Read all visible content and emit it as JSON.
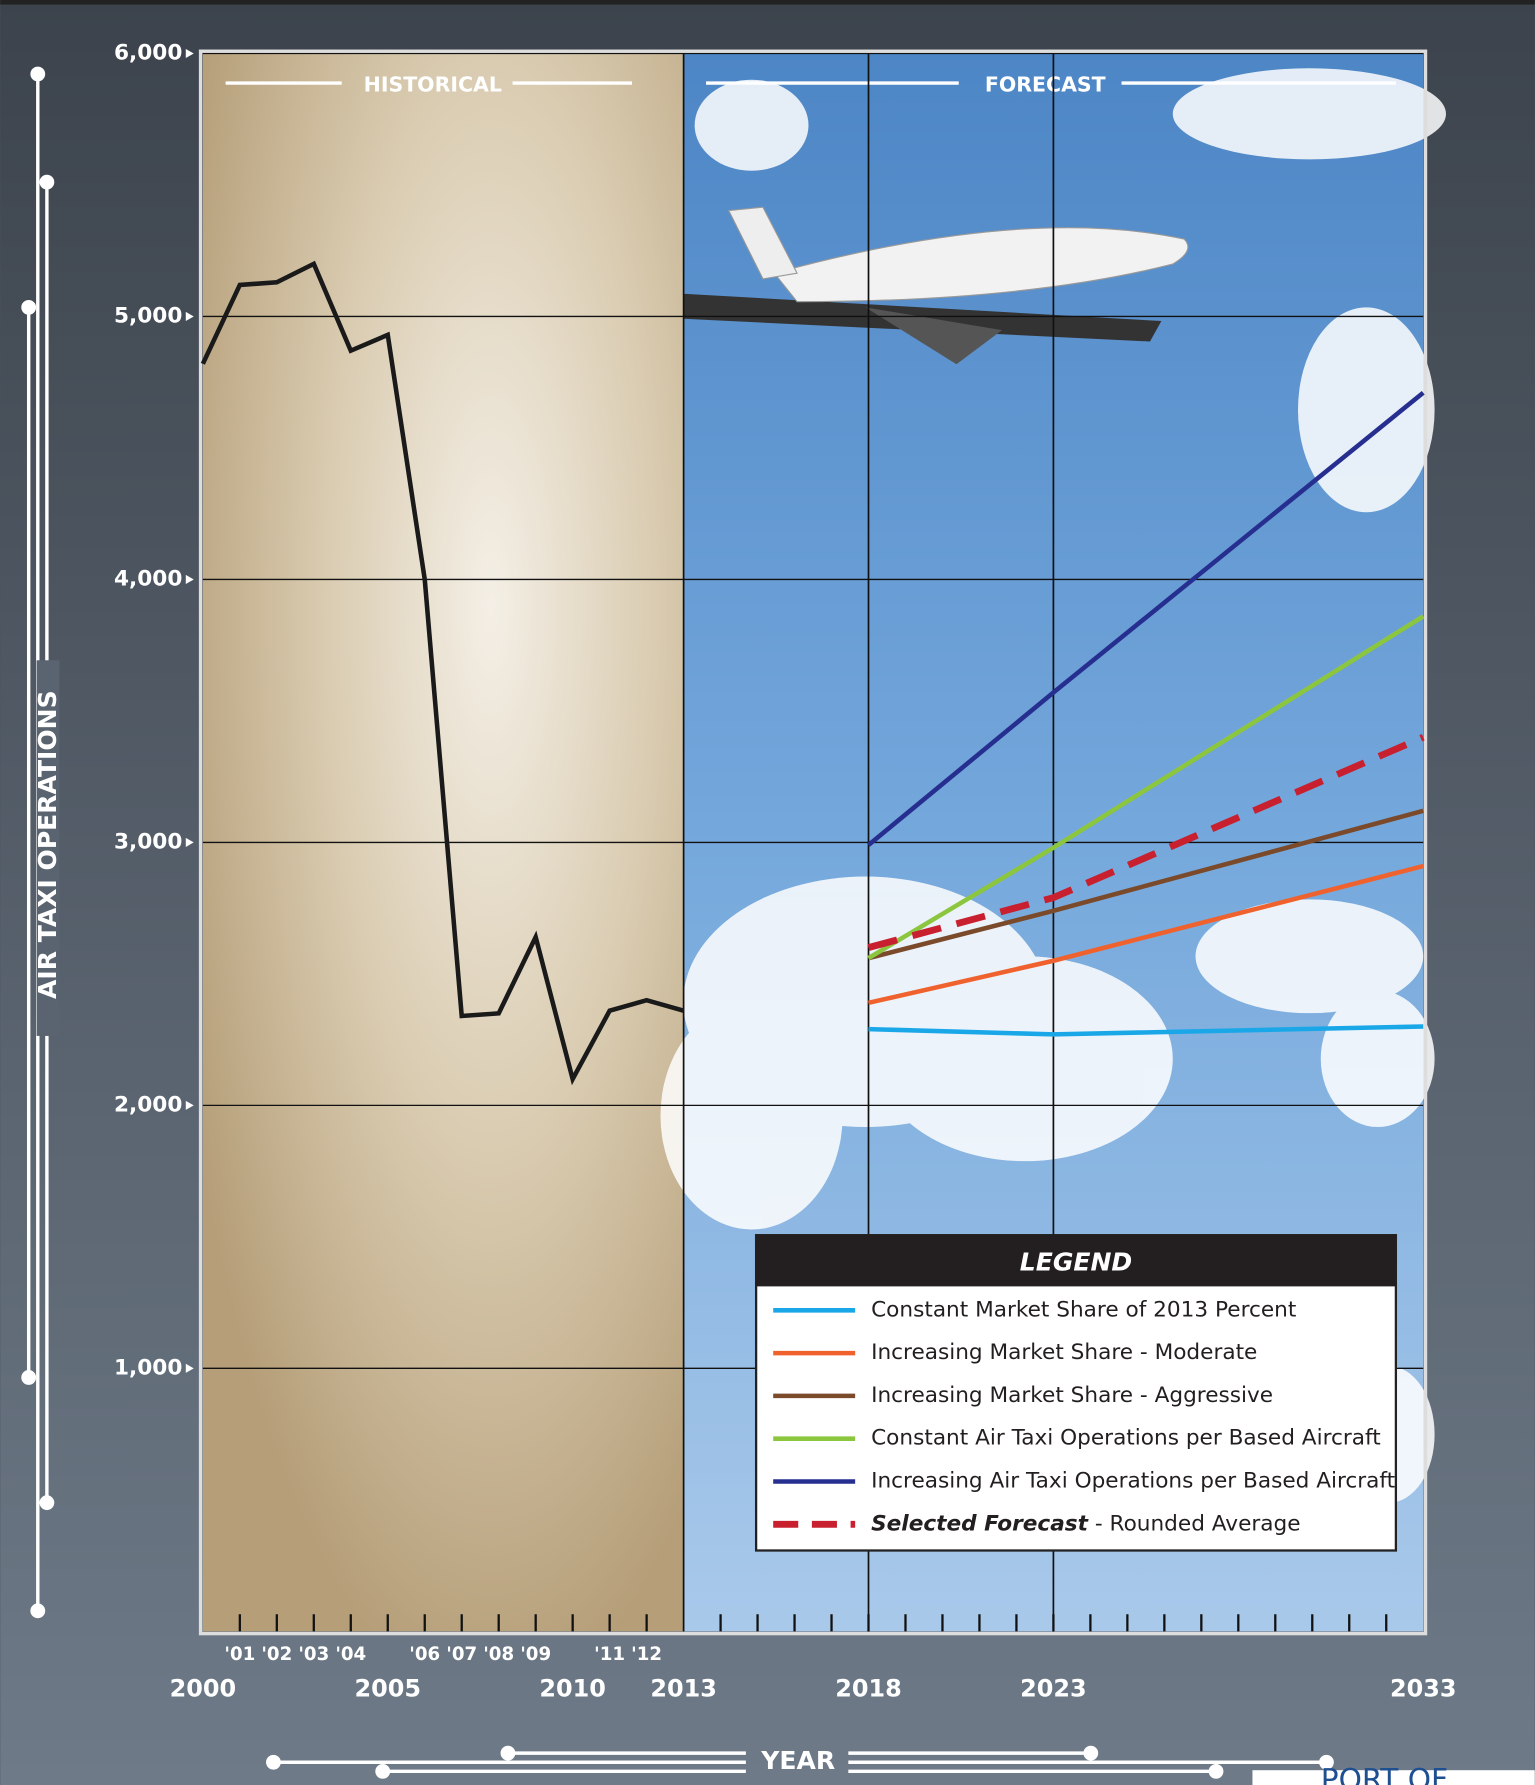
{
  "chart_data": {
    "type": "line",
    "historical_label": "HISTORICAL",
    "forecast_label": "FORECAST",
    "xlabel": "YEAR",
    "ylabel": "AIR TAXI OPERATIONS",
    "xlim": [
      2000,
      2033
    ],
    "ylim": [
      0,
      6000
    ],
    "xticks": [
      2000,
      2005,
      2010,
      2013,
      2018,
      2023,
      2033,
      {
        "value": 2001,
        "label": "'01"
      },
      {
        "value": 2002,
        "label": "'02"
      },
      {
        "value": 2003,
        "label": "'03"
      },
      {
        "value": 2004,
        "label": "'04"
      },
      {
        "value": 2006,
        "label": "'06"
      },
      {
        "value": 2007,
        "label": "'07"
      },
      {
        "value": 2008,
        "label": "'08"
      },
      {
        "value": 2009,
        "label": "'09"
      },
      {
        "value": 2011,
        "label": "'11"
      },
      {
        "value": 2012,
        "label": "'12"
      }
    ],
    "xminorticks": [
      2001,
      2002,
      2003,
      2004,
      2005,
      2006,
      2007,
      2008,
      2009,
      2010,
      2011,
      2012,
      2014,
      2015,
      2016,
      2017,
      2018,
      2019,
      2020,
      2021,
      2022,
      2023,
      2024,
      2025,
      2026,
      2027,
      2028,
      2029,
      2030,
      2031,
      2032
    ],
    "xgrid": [
      2013,
      2018,
      2023
    ],
    "yticks": [
      {
        "value": 1000,
        "label": "1,000"
      },
      {
        "value": 2000,
        "label": "2,000"
      },
      {
        "value": 3000,
        "label": "3,000"
      },
      {
        "value": 4000,
        "label": "4,000"
      },
      {
        "value": 5000,
        "label": "5,000"
      },
      {
        "value": 6000,
        "label": "6,000"
      }
    ],
    "grid": true,
    "legend_title": "LEGEND",
    "historical": {
      "color": "#1a1a1a",
      "x": [
        2000,
        2001,
        2002,
        2003,
        2004,
        2005,
        2006,
        2007,
        2008,
        2009,
        2010,
        2011,
        2012,
        2013
      ],
      "values": [
        4820,
        5120,
        5130,
        5200,
        4870,
        4930,
        4000,
        2340,
        2350,
        2640,
        2100,
        2360,
        2400,
        2360
      ]
    },
    "series": [
      {
        "name": "Constant Market Share of 2013 Percent",
        "color": "#1aa7e8",
        "x": [
          2018,
          2023,
          2033
        ],
        "values": [
          2290,
          2270,
          2300
        ]
      },
      {
        "name": "Increasing Market Share - Moderate",
        "color": "#f0622d",
        "x": [
          2018,
          2023,
          2033
        ],
        "values": [
          2390,
          2550,
          2910
        ]
      },
      {
        "name": "Increasing Market Share - Aggressive",
        "color": "#7a4a2a",
        "x": [
          2018,
          2023,
          2033
        ],
        "values": [
          2560,
          2740,
          3120
        ]
      },
      {
        "name": "Constant Air Taxi Operations per Based Aircraft",
        "color": "#8cc63f",
        "x": [
          2018,
          2023,
          2033
        ],
        "values": [
          2560,
          2980,
          3860
        ]
      },
      {
        "name": "Increasing Air Taxi Operations per Based Aircraft",
        "color": "#262f8f",
        "x": [
          2018,
          2023,
          2033
        ],
        "values": [
          2990,
          3570,
          4710
        ]
      },
      {
        "name": "Selected Forecast - Rounded Average",
        "color": "#c8202f",
        "dashed": true,
        "x": [
          2018,
          2023,
          2033
        ],
        "values": [
          2600,
          2790,
          3400
        ]
      }
    ]
  },
  "logo": "PORT OF"
}
